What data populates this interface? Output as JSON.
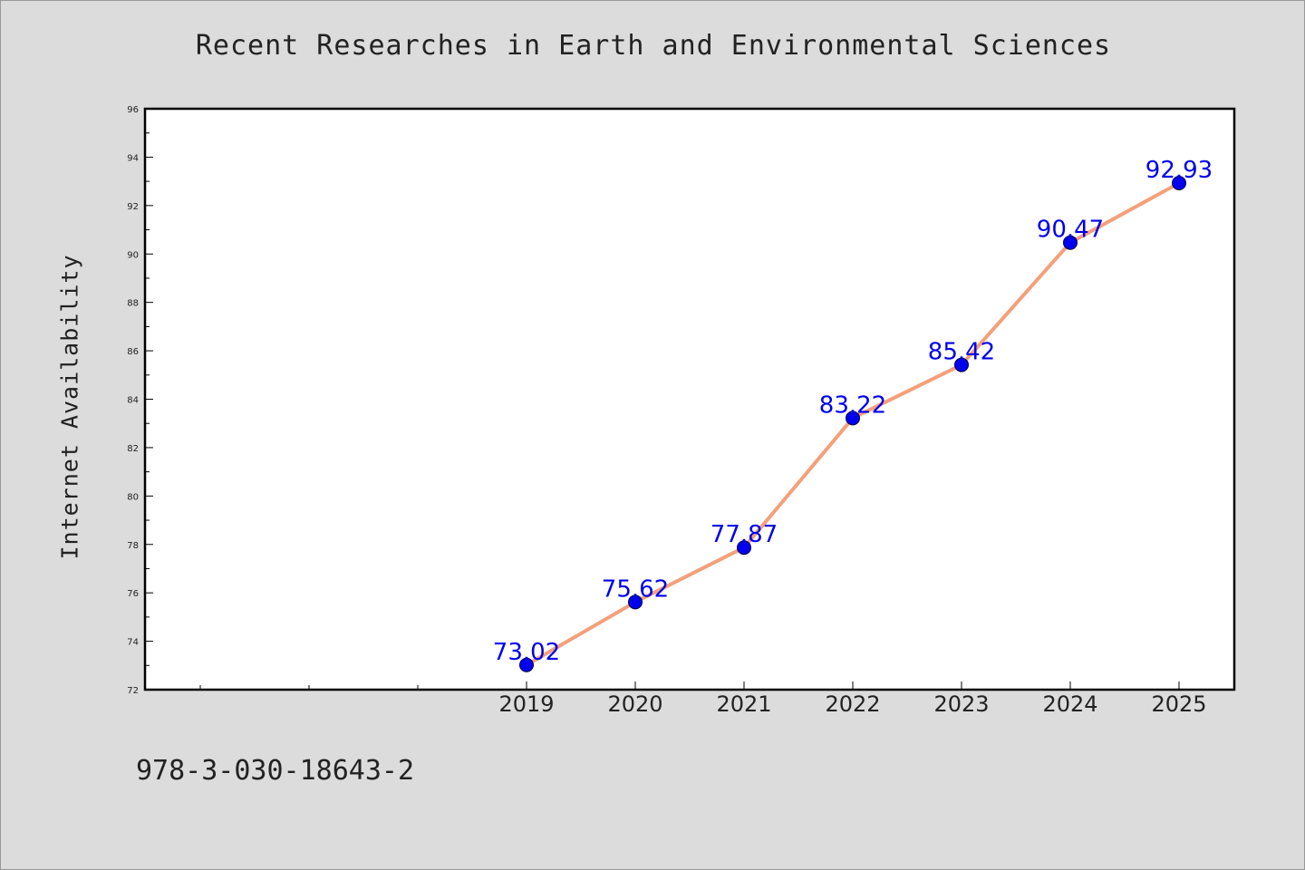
{
  "chart_data": {
    "type": "line",
    "title": "Recent Researches in Earth and Environmental Sciences",
    "ylabel": "Internet Availability",
    "xlabel": "",
    "x": [
      "2019",
      "2020",
      "2021",
      "2022",
      "2023",
      "2024",
      "2025"
    ],
    "series": [
      {
        "values": [
          73.02,
          75.62,
          77.87,
          83.22,
          85.42,
          90.47,
          92.93
        ]
      }
    ],
    "data_labels": [
      "73.02",
      "75.62",
      "77.87",
      "83.22",
      "85.42",
      "90.47",
      "92.93"
    ],
    "ylim": [
      72,
      96
    ],
    "yticks": [
      "72",
      "74",
      "76",
      "78",
      "80",
      "82",
      "84",
      "86",
      "88",
      "90",
      "92",
      "94",
      "96"
    ],
    "grid": false,
    "legend": "none",
    "colors": {
      "line": "#f4a07a",
      "marker": "#0000ee",
      "label": "#0000ee",
      "background": "#dcdcdc",
      "plot_background": "#ffffff"
    }
  },
  "footer": {
    "text": "978-3-030-18643-2"
  }
}
